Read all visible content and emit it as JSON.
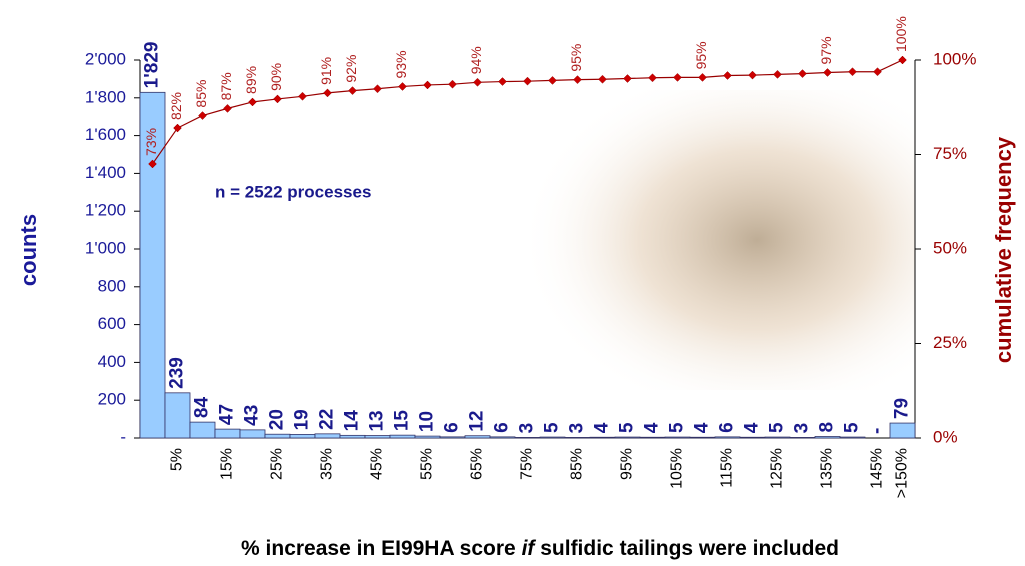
{
  "chart_data": {
    "type": "bar",
    "categories": [
      null,
      "5%",
      null,
      "15%",
      null,
      "25%",
      null,
      "35%",
      null,
      "45%",
      null,
      "55%",
      null,
      "65%",
      null,
      "75%",
      null,
      "85%",
      null,
      "95%",
      null,
      "105%",
      null,
      "115%",
      null,
      "125%",
      null,
      "135%",
      null,
      "145%",
      ">150%"
    ],
    "series": [
      {
        "name": "counts",
        "color": "#99ccff",
        "values": [
          1829,
          239,
          84,
          47,
          43,
          20,
          19,
          22,
          14,
          13,
          15,
          10,
          6,
          12,
          6,
          3,
          5,
          3,
          4,
          5,
          4,
          5,
          4,
          6,
          4,
          5,
          3,
          8,
          5,
          0,
          79
        ],
        "value_labels": [
          "1'829",
          "239",
          "84",
          "47",
          "43",
          "20",
          "19",
          "22",
          "14",
          "13",
          "15",
          "10",
          "6",
          "12",
          "6",
          "3",
          "5",
          "3",
          "4",
          "5",
          "4",
          "5",
          "4",
          "6",
          "4",
          "5",
          "3",
          "8",
          "5",
          "-",
          "79"
        ]
      },
      {
        "name": "cumulative frequency",
        "color": "#cc0000",
        "axis": "y2",
        "type": "line",
        "values": [
          72.5,
          82.0,
          85.3,
          87.2,
          88.9,
          89.7,
          90.4,
          91.3,
          91.9,
          92.4,
          93.0,
          93.4,
          93.6,
          94.1,
          94.3,
          94.4,
          94.6,
          94.8,
          94.9,
          95.1,
          95.3,
          95.4,
          95.4,
          95.9,
          96.0,
          96.2,
          96.4,
          96.7,
          96.9,
          96.9,
          100
        ],
        "value_labels": [
          "73%",
          "82%",
          "85%",
          "87%",
          "89%",
          "90%",
          null,
          "91%",
          "92%",
          null,
          "93%",
          null,
          null,
          "94%",
          null,
          null,
          null,
          "95%",
          null,
          null,
          null,
          null,
          "95%",
          null,
          null,
          null,
          null,
          "97%",
          null,
          null,
          "100%"
        ]
      }
    ],
    "ylabel": "counts",
    "y2label": "cumulative frequency",
    "xlabel": [
      "% increase in EI99HA score ",
      "if",
      " sulfidic tailings were included"
    ],
    "annotation": "n = 2522 processes",
    "ylim": [
      0,
      2000
    ],
    "yticks": [
      {
        "value": 0,
        "label": "-"
      },
      200,
      400,
      600,
      800,
      {
        "value": 1000,
        "label": "1'000"
      },
      {
        "value": 1200,
        "label": "1'200"
      },
      {
        "value": 1400,
        "label": "1'400"
      },
      {
        "value": 1600,
        "label": "1'600"
      },
      {
        "value": 1800,
        "label": "1'800"
      },
      {
        "value": 2000,
        "label": "2'000"
      }
    ],
    "y2lim": [
      0,
      100
    ],
    "y2ticks": [
      {
        "value": 0,
        "label": "0%"
      },
      {
        "value": 25,
        "label": "25%"
      },
      {
        "value": 50,
        "label": "50%"
      },
      {
        "value": 75,
        "label": "75%"
      },
      {
        "value": 100,
        "label": "100%"
      }
    ]
  }
}
